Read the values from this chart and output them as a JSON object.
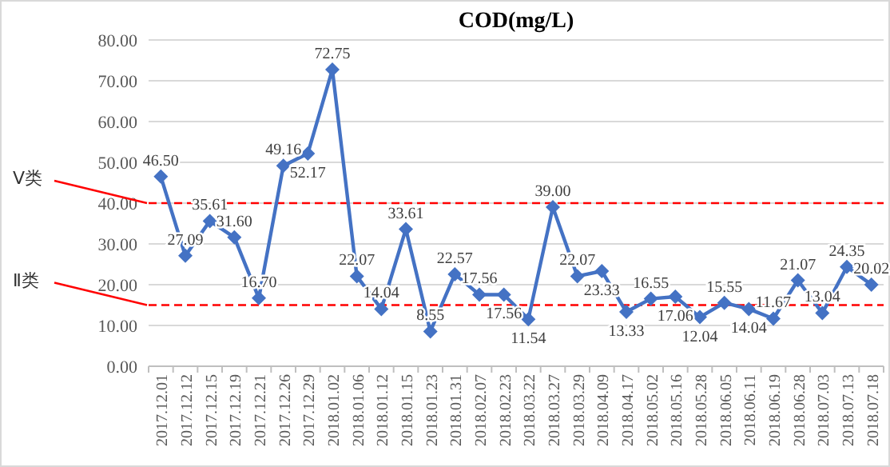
{
  "chart_data": {
    "type": "line",
    "title": "COD(mg/L)",
    "categories": [
      "2017.12.01",
      "2017.12.12",
      "2017.12.15",
      "2017.12.19",
      "2017.12.21",
      "2017.12.26",
      "2017.12.29",
      "2018.01.02",
      "2018.01.06",
      "2018.01.12",
      "2018.01.15",
      "2018.01.23",
      "2018.01.31",
      "2018.02.07",
      "2018.02.23",
      "2018.03.22",
      "2018.03.27",
      "2018.03.29",
      "2018.04.09",
      "2018.04.17",
      "2018.05.02",
      "2018.05.16",
      "2018.05.28",
      "2018.06.05",
      "2018.06.11",
      "2018.06.19",
      "2018.06.28",
      "2018.07.03",
      "2018.07.13",
      "2018.07.18"
    ],
    "series": [
      {
        "color": "#4472c4",
        "values": [
          46.5,
          27.09,
          35.61,
          31.6,
          16.7,
          49.16,
          52.17,
          72.75,
          22.07,
          14.04,
          33.61,
          8.55,
          22.57,
          17.56,
          17.56,
          11.54,
          39.0,
          22.07,
          23.33,
          13.33,
          16.55,
          17.06,
          12.04,
          15.55,
          14.04,
          11.67,
          21.07,
          13.04,
          24.35,
          20.02
        ],
        "value_labels": [
          "46.50",
          "27.09",
          "35.61",
          "31.60",
          "16.70",
          "49.16",
          "52.17",
          "72.75",
          "22.07",
          "14.04",
          "33.61",
          "8.55",
          "22.57",
          "17.56",
          "17.56",
          "11.54",
          "39.00",
          "22.07",
          "23.33",
          "13.33",
          "16.55",
          "17.06",
          "12.04",
          "15.55",
          "14.04",
          "11.67",
          "21.07",
          "13.04",
          "24.35",
          "20.02"
        ]
      }
    ],
    "ylim": [
      0,
      80
    ],
    "yticks": [
      {
        "value": 0,
        "label": "0.00"
      },
      {
        "value": 10,
        "label": "10.00"
      },
      {
        "value": 20,
        "label": "20.00"
      },
      {
        "value": 30,
        "label": "30.00"
      },
      {
        "value": 40,
        "label": "40.00"
      },
      {
        "value": 50,
        "label": "50.00"
      },
      {
        "value": 60,
        "label": "60.00"
      },
      {
        "value": 70,
        "label": "70.00"
      },
      {
        "value": 80,
        "label": "80.00"
      }
    ],
    "ref_lines": [
      {
        "axis": "y",
        "value": 40,
        "label": "Ⅴ类",
        "color": "#ff0000",
        "line_style": "dashed"
      },
      {
        "axis": "y",
        "value": 15,
        "label": "Ⅱ类",
        "color": "#ff0000",
        "line_style": "dashed"
      }
    ],
    "grid": "y",
    "marker": "diamond",
    "line_style": "solid"
  }
}
